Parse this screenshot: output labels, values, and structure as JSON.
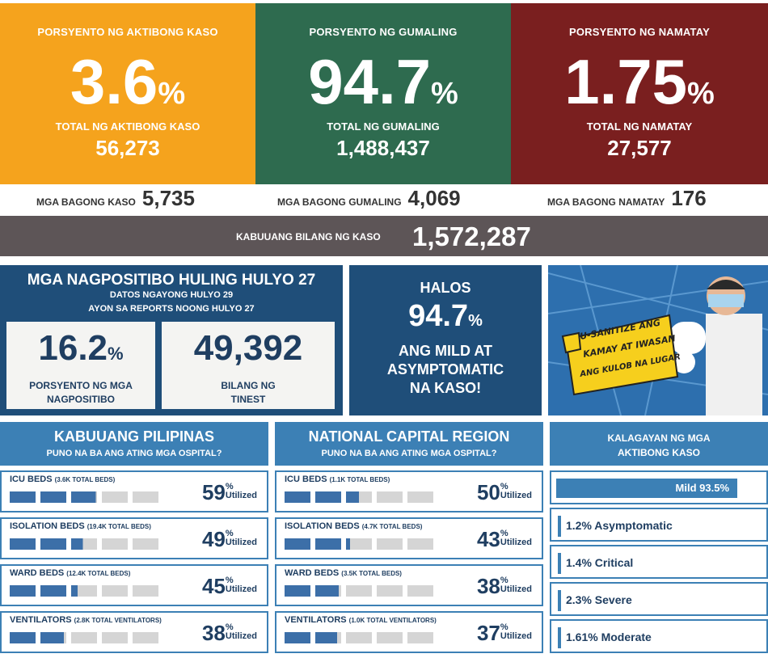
{
  "top": {
    "active": {
      "title": "PORSYENTO NG AKTIBONG KASO",
      "pct": "3.6",
      "pct_sign": "%",
      "sub": "TOTAL NG AKTIBONG KASO",
      "num": "56,273",
      "color": "#f5a31d"
    },
    "recovered": {
      "title": "PORSYENTO NG GUMALING",
      "pct": "94.7",
      "pct_sign": "%",
      "sub": "TOTAL NG GUMALING",
      "num": "1,488,437",
      "color": "#2e6b4f"
    },
    "deaths": {
      "title": "PORSYENTO NG NAMATAY",
      "pct": "1.75",
      "pct_sign": "%",
      "sub": "TOTAL NG NAMATAY",
      "num": "27,577",
      "color": "#7a1f1f"
    }
  },
  "new": {
    "cases": {
      "label": "MGA BAGONG KASO",
      "value": "5,735"
    },
    "recovered": {
      "label": "MGA BAGONG GUMALING",
      "value": "4,069"
    },
    "deaths": {
      "label": "MGA BAGONG NAMATAY",
      "value": "176"
    }
  },
  "total": {
    "label": "KABUUANG BILANG NG KASO",
    "value": "1,572,287"
  },
  "positivity": {
    "title": "MGA NAGPOSITIBO HULING HULYO 27",
    "line1": "DATOS NGAYONG HULYO 29",
    "line2": "AYON SA REPORTS NOONG HULYO 27",
    "rate": "16.2",
    "rate_sign": "%",
    "rate_label1": "PORSYENTO NG MGA",
    "rate_label2": "NAGPOSITIBO",
    "tested": "49,392",
    "tested_label1": "BILANG NG",
    "tested_label2": "TINEST"
  },
  "mild": {
    "line1": "HALOS",
    "pct": "94.7",
    "pct_sign": "%",
    "line2": "ANG MILD AT",
    "line3": "ASYMPTOMATIC",
    "line4": "NA KASO!"
  },
  "poster": {
    "text1": "U-SANITIZE ANG",
    "text2": "KAMAY AT IWASAN",
    "text3": "ANG KULOB NA LUGAR"
  },
  "ph": {
    "title": "KABUUANG PILIPINAS",
    "subtitle": "PUNO NA BA ANG ATING MGA OSPITAL?",
    "rows": [
      {
        "label": "ICU BEDS",
        "total": "(3.6K TOTAL BEDS)",
        "pct": "59",
        "fill": 0.59
      },
      {
        "label": "ISOLATION BEDS",
        "total": "(19.4K TOTAL BEDS)",
        "pct": "49",
        "fill": 0.49
      },
      {
        "label": "WARD BEDS",
        "total": "(12.4K TOTAL BEDS)",
        "pct": "45",
        "fill": 0.45
      },
      {
        "label": "VENTILATORS",
        "total": "(2.8K TOTAL VENTILATORS)",
        "pct": "38",
        "fill": 0.38
      }
    ]
  },
  "ncr": {
    "title": "NATIONAL CAPITAL REGION",
    "subtitle": "PUNO NA BA ANG ATING MGA OSPITAL?",
    "rows": [
      {
        "label": "ICU BEDS",
        "total": "(1.1K TOTAL BEDS)",
        "pct": "50",
        "fill": 0.5
      },
      {
        "label": "ISOLATION BEDS",
        "total": "(4.7K TOTAL BEDS)",
        "pct": "43",
        "fill": 0.43
      },
      {
        "label": "WARD BEDS",
        "total": "(3.5K TOTAL BEDS)",
        "pct": "38",
        "fill": 0.38
      },
      {
        "label": "VENTILATORS",
        "total": "(1.0K TOTAL VENTILATORS)",
        "pct": "37",
        "fill": 0.37
      }
    ]
  },
  "util_sign": "%",
  "util_word": "Utilized",
  "status": {
    "title1": "KALAGAYAN NG MGA",
    "title2": "AKTIBONG KASO",
    "mild": "Mild 93.5%",
    "mild_fill": 0.935,
    "items": [
      "1.2% Asymptomatic",
      "1.4% Critical",
      "2.3% Severe",
      "1.61% Moderate"
    ]
  },
  "colors": {
    "bar_filled": "#3c6fa8",
    "bar_empty": "#d5d5d5",
    "header": "#3c80b5",
    "navy": "#1f4e79"
  }
}
